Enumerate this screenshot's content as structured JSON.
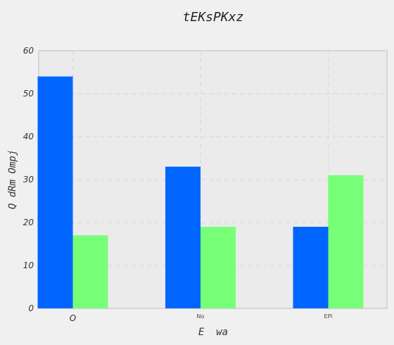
{
  "chart_data": {
    "type": "bar",
    "title": "tEKsPKxz",
    "xlabel": "E  wa",
    "ylabel": "Q dRm Ompj",
    "categories": [
      "O",
      "No",
      "EPi"
    ],
    "series": [
      {
        "values": [
          54,
          33,
          19
        ],
        "color": "#0066ff"
      },
      {
        "values": [
          17,
          19,
          31
        ],
        "color": "#77ff77"
      }
    ],
    "ylim": [
      0,
      60
    ],
    "yticks": [
      0,
      10,
      20,
      30,
      40,
      50,
      60
    ],
    "grid": true,
    "legend": "none"
  }
}
